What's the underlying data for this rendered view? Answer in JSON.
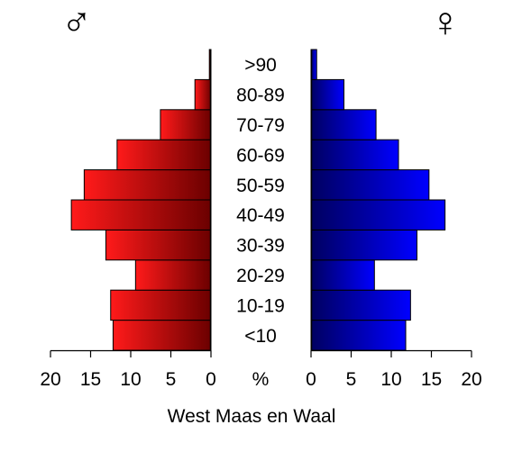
{
  "chart_data": {
    "type": "bar",
    "title": "",
    "xlabel": "West Maas en Waal",
    "unit_label": "%",
    "male_symbol": "♂",
    "female_symbol": "♀",
    "xlim": [
      0,
      20
    ],
    "ticks": [
      "0",
      "5",
      "10",
      "15",
      "20"
    ],
    "categories": [
      "<10",
      "10-19",
      "20-29",
      "30-39",
      "40-49",
      "50-59",
      "60-69",
      "70-79",
      "80-89",
      ">90"
    ],
    "series": [
      {
        "name": "male",
        "values": [
          12.2,
          12.5,
          9.4,
          13.1,
          17.4,
          15.8,
          11.7,
          6.3,
          2.0,
          0.2
        ]
      },
      {
        "name": "female",
        "values": [
          11.8,
          12.4,
          7.9,
          13.2,
          16.7,
          14.7,
          10.9,
          8.1,
          4.1,
          0.7
        ]
      }
    ],
    "colors": {
      "male_light": "#ff1a1a",
      "male_dark": "#6b0000",
      "female_light": "#0000ff",
      "female_dark": "#000060"
    }
  }
}
